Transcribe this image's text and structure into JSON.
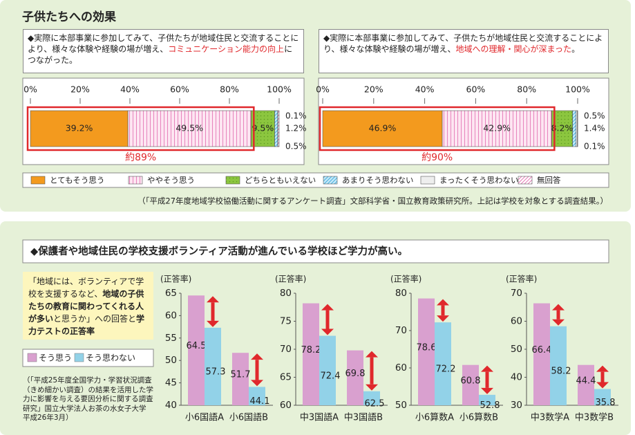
{
  "section1": {
    "title": "子供たちへの効果",
    "source": "（「平成27年度地域学校協働活動に関するアンケート調査」文部科学省・国立教育政策研究所。上記は学校を対象とする調査結果。）"
  },
  "section2": {
    "heading": "◆保護者や地域住民の学校支援ボランティア活動が進んでいる学校ほど学力が高い。",
    "note": [
      "「地域には、ボランティアで学校を支援するなど、",
      "地域の子供たちの教育に関わってくれる人が多い",
      "と思うか」への回答と",
      "学力テストの正答率"
    ],
    "source": "（「平成25年度全国学力・学習状況調査（きめ細かい調査）の結果を活用した学力に影響を与える要因分析に関する調査研究」国立大学法人お茶の水女子大学　平成26年3月）"
  },
  "chart_data": [
    {
      "type": "stacked_barh",
      "xlim": [
        0,
        100
      ],
      "xticks": [
        {
          "value": 0,
          "label": "0%"
        },
        {
          "value": 20,
          "label": "20%"
        },
        {
          "value": 40,
          "label": "40%"
        },
        {
          "value": 60,
          "label": "60%"
        },
        {
          "value": 80,
          "label": "80%"
        },
        {
          "value": 100,
          "label": "100%"
        }
      ],
      "panels": [
        {
          "question": [
            "◆実際に本部事業に参加してみて、子供たちが地域住民と交流することにより、様々な体験や経験の場が増え、",
            "コミュニケーション能力の向上",
            "につながった。"
          ],
          "annotation": "約89%"
        },
        {
          "question": [
            "◆実際に本部事業に参加してみて、子供たちが地域住民と交流することにより、様々な体験や経験の場が増え、",
            "地域への理解・関心が深まった",
            "。"
          ],
          "annotation": "約90%"
        }
      ],
      "series": [
        {
          "name": "とてもそう思う",
          "color": "#f39a1e",
          "values": [
            39.2,
            46.9
          ],
          "value_labels": [
            "39.2%",
            "46.9%"
          ]
        },
        {
          "name": "ややそう思う",
          "color": "#fde6f2",
          "hatch": "vertical",
          "hatch_color": "#e26aae",
          "values": [
            49.5,
            42.9
          ],
          "value_labels": [
            "49.5%",
            "42.9%"
          ]
        },
        {
          "name": "どちらともいえない",
          "color": "#8cc63f",
          "hatch": "dots",
          "hatch_color": "#5f9a22",
          "values": [
            9.5,
            8.2
          ],
          "value_labels": [
            "9.5%",
            "8.2%"
          ]
        },
        {
          "name": "あまりそう思わない",
          "color": "#c4e8f8",
          "hatch": "diagonal",
          "hatch_color": "#3aa8dc",
          "values": [
            1.2,
            1.4
          ],
          "value_labels": [
            "1.2%",
            "1.4%"
          ]
        },
        {
          "name": "まったくそう思わない",
          "color": "#eeeeee",
          "values": [
            0.1,
            0.5
          ],
          "value_labels": [
            "0.1%",
            "0.5%"
          ]
        },
        {
          "name": "無回答",
          "color": "#ffffff",
          "hatch": "diagonal",
          "hatch_color": "#e26aae",
          "values": [
            0.5,
            0.1
          ],
          "value_labels": [
            "0.5%",
            "0.1%"
          ]
        }
      ]
    },
    {
      "type": "bar",
      "ylabel": "(正答率)",
      "series": [
        {
          "name": "そう思う",
          "color": "#d9a0cf",
          "values": [
            [
              64.5,
              51.7
            ],
            [
              78.2,
              69.8
            ],
            [
              78.6,
              60.8
            ],
            [
              66.4,
              44.4
            ]
          ]
        },
        {
          "name": "そう思わない",
          "color": "#92d2e8",
          "values": [
            [
              57.3,
              44.1
            ],
            [
              72.4,
              62.5
            ],
            [
              72.2,
              52.8
            ],
            [
              58.2,
              35.8
            ]
          ]
        }
      ],
      "panels": [
        {
          "categories": [
            "小6国語A",
            "小6国語B"
          ],
          "ylim": [
            40,
            65
          ],
          "yticks": [
            40,
            45,
            50,
            55,
            60,
            65
          ]
        },
        {
          "categories": [
            "中3国語A",
            "中3国語B"
          ],
          "ylim": [
            60,
            80
          ],
          "yticks": [
            60,
            65,
            70,
            75,
            80
          ]
        },
        {
          "categories": [
            "小6算数A",
            "小6算数B"
          ],
          "ylim": [
            50,
            80
          ],
          "yticks": [
            50,
            60,
            70,
            80
          ]
        },
        {
          "categories": [
            "中3数学A",
            "中3数学B"
          ],
          "ylim": [
            30,
            70
          ],
          "yticks": [
            30,
            40,
            50,
            60,
            70
          ]
        }
      ]
    }
  ]
}
